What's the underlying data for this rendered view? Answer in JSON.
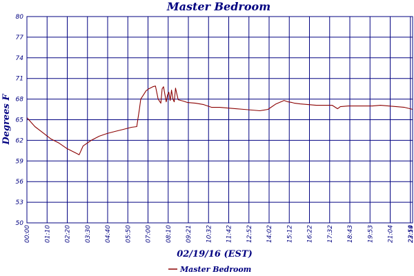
{
  "chart_data": {
    "type": "line",
    "title": "Master Bedroom",
    "xlabel": "02/19/16 (EST)",
    "ylabel": "Degrees F",
    "ylim": [
      50,
      80
    ],
    "yticks": [
      50,
      53,
      56,
      59,
      62,
      65,
      68,
      71,
      74,
      77,
      80
    ],
    "x_unit": "minutes since 00:00",
    "xlim": [
      0,
      1440
    ],
    "xtick_labels": [
      "00:00",
      "01:10",
      "02:20",
      "03:30",
      "04:40",
      "05:50",
      "07:00",
      "08:10",
      "09:21",
      "10:32",
      "11:42",
      "12:52",
      "14:02",
      "15:12",
      "16:22",
      "17:32",
      "18:43",
      "19:53",
      "21:04",
      "22:14",
      "23:24",
      "23:59"
    ],
    "grid": true,
    "legend_position": "bottom-center",
    "series": [
      {
        "name": "Master Bedroom",
        "color": "#8B0000",
        "x": [
          0,
          30,
          60,
          90,
          120,
          150,
          180,
          195,
          210,
          240,
          270,
          300,
          330,
          360,
          390,
          410,
          420,
          425,
          435,
          445,
          455,
          470,
          480,
          490,
          500,
          505,
          510,
          520,
          525,
          530,
          535,
          540,
          545,
          550,
          555,
          560,
          565,
          575,
          585,
          600,
          630,
          660,
          690,
          720,
          750,
          780,
          810,
          840,
          870,
          900,
          930,
          960,
          975,
          990,
          1000,
          1020,
          1050,
          1080,
          1110,
          1140,
          1160,
          1170,
          1200,
          1230,
          1260,
          1290,
          1320,
          1350,
          1380,
          1410,
          1440
        ],
        "y": [
          65.3,
          64.0,
          63.1,
          62.2,
          61.6,
          60.8,
          60.2,
          59.9,
          61.2,
          62.0,
          62.6,
          63.0,
          63.3,
          63.6,
          63.9,
          64.0,
          66.5,
          68.0,
          68.6,
          69.2,
          69.5,
          69.8,
          69.9,
          68.0,
          67.4,
          69.5,
          69.8,
          67.6,
          68.6,
          69.0,
          67.8,
          69.3,
          68.0,
          67.6,
          69.6,
          68.7,
          67.9,
          67.8,
          67.7,
          67.5,
          67.4,
          67.2,
          66.8,
          66.8,
          66.7,
          66.6,
          66.5,
          66.4,
          66.3,
          66.5,
          67.3,
          67.8,
          67.6,
          67.5,
          67.4,
          67.3,
          67.2,
          67.1,
          67.1,
          67.1,
          66.6,
          66.9,
          67.0,
          67.0,
          67.0,
          67.0,
          67.1,
          67.0,
          66.9,
          66.8,
          66.5
        ]
      }
    ]
  }
}
